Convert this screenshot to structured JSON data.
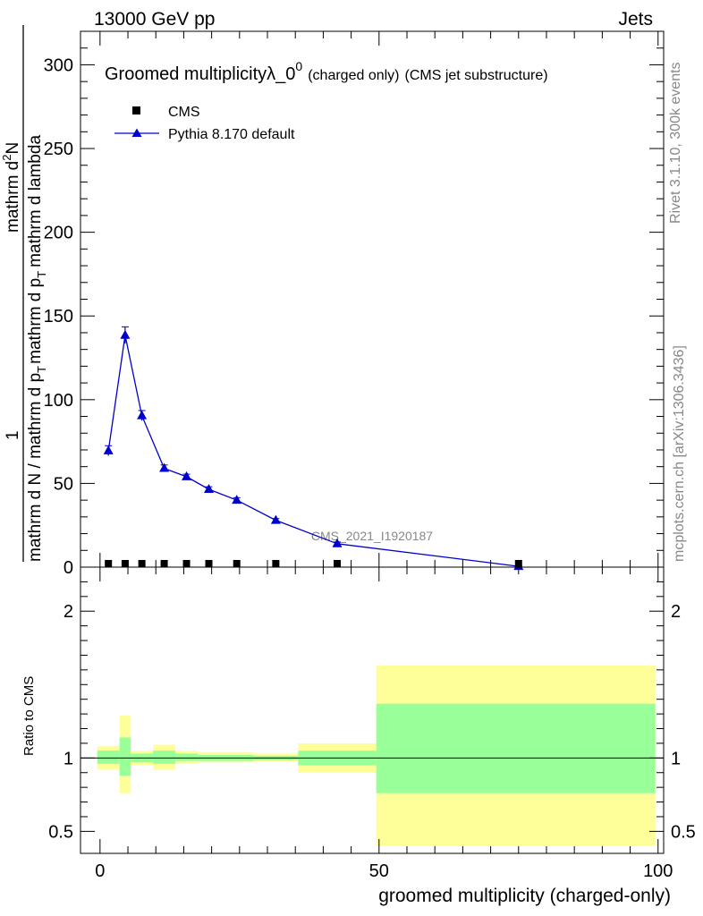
{
  "header": {
    "left": "13000 GeV pp",
    "right": "Jets"
  },
  "side": {
    "rivet": "Rivet 3.1.10,  300k events",
    "mcplots": "mcplots.cern.ch [arXiv:1306.3436]"
  },
  "colors": {
    "pythia": "#0000cc",
    "cms": "#000000",
    "band_inner": "#99ff99",
    "band_outer": "#ffff99"
  },
  "chart_data": [
    {
      "type": "scatter",
      "title_main": "Groomed multiplicity",
      "title_lambda": "λ_0",
      "title_sup": "0",
      "title_small": "(charged only)",
      "title_tail": "(CMS jet substructure)",
      "ylabel_line1": "1",
      "ylabel_line2_num": "mathrm d",
      "ylabel_line2_sup": "2",
      "ylabel_line2_tail": "N",
      "ylabel_line3_a": "mathrm d N / mathrm d p",
      "ylabel_line3_sub": "T",
      "ylabel_line3_b": "mathrm d p",
      "ylabel_line3_sub2": "T",
      "ylabel_line3_c": "mathrm d lambda",
      "xlim": [
        -3.5,
        101
      ],
      "ylim": [
        0,
        320
      ],
      "yticks": [
        0,
        50,
        100,
        150,
        200,
        250,
        300
      ],
      "watermark": "CMS_2021_I1920187",
      "legend": [
        {
          "name": "CMS"
        },
        {
          "name": "Pythia 8.170 default"
        }
      ],
      "series": [
        {
          "name": "CMS",
          "x": [
            1.5,
            4.5,
            7.5,
            11.5,
            15.5,
            19.5,
            24.5,
            31.5,
            42.5,
            75
          ],
          "y": [
            0.2,
            0.2,
            0.2,
            0.2,
            0.2,
            0.2,
            0.2,
            0.2,
            0.2,
            0.2
          ]
        },
        {
          "name": "Pythia 8.170 default",
          "x": [
            1.5,
            4.5,
            7.5,
            11.5,
            15.5,
            19.5,
            24.5,
            31.5,
            42.5,
            75
          ],
          "y": [
            69.5,
            138.5,
            90.5,
            59,
            54,
            46.5,
            40,
            28,
            14,
            0.5
          ],
          "err": [
            3,
            5,
            3,
            2,
            1.5,
            1.5,
            1.5,
            1,
            1,
            0.3
          ]
        }
      ]
    },
    {
      "type": "area",
      "ylabel": "Ratio to CMS",
      "xlabel": "groomed multiplicity (charged-only)",
      "xlim": [
        -3.5,
        101
      ],
      "ylim": [
        0.35,
        2.3
      ],
      "xticks": [
        0,
        50,
        100
      ],
      "yticks": [
        0.5,
        1,
        2
      ],
      "bins": [
        {
          "x0": -0.5,
          "x1": 3.5,
          "inner": [
            0.96,
            1.05
          ],
          "outer": [
            0.92,
            1.08
          ]
        },
        {
          "x0": 3.5,
          "x1": 5.5,
          "inner": [
            0.88,
            1.14
          ],
          "outer": [
            0.76,
            1.29
          ]
        },
        {
          "x0": 5.5,
          "x1": 9.5,
          "inner": [
            0.97,
            1.03
          ],
          "outer": [
            0.95,
            1.05
          ]
        },
        {
          "x0": 9.5,
          "x1": 13.5,
          "inner": [
            0.96,
            1.05
          ],
          "outer": [
            0.92,
            1.09
          ]
        },
        {
          "x0": 13.5,
          "x1": 17.5,
          "inner": [
            0.98,
            1.03
          ],
          "outer": [
            0.96,
            1.05
          ]
        },
        {
          "x0": 17.5,
          "x1": 21.5,
          "inner": [
            0.98,
            1.02
          ],
          "outer": [
            0.97,
            1.04
          ]
        },
        {
          "x0": 21.5,
          "x1": 27.5,
          "inner": [
            0.98,
            1.02
          ],
          "outer": [
            0.97,
            1.04
          ]
        },
        {
          "x0": 27.5,
          "x1": 35.5,
          "inner": [
            0.985,
            1.015
          ],
          "outer": [
            0.975,
            1.03
          ]
        },
        {
          "x0": 35.5,
          "x1": 49.5,
          "inner": [
            0.95,
            1.05
          ],
          "outer": [
            0.9,
            1.1
          ]
        },
        {
          "x0": 49.5,
          "x1": 99.5,
          "inner": [
            0.76,
            1.37
          ],
          "outer": [
            0.4,
            1.63
          ]
        }
      ]
    }
  ]
}
